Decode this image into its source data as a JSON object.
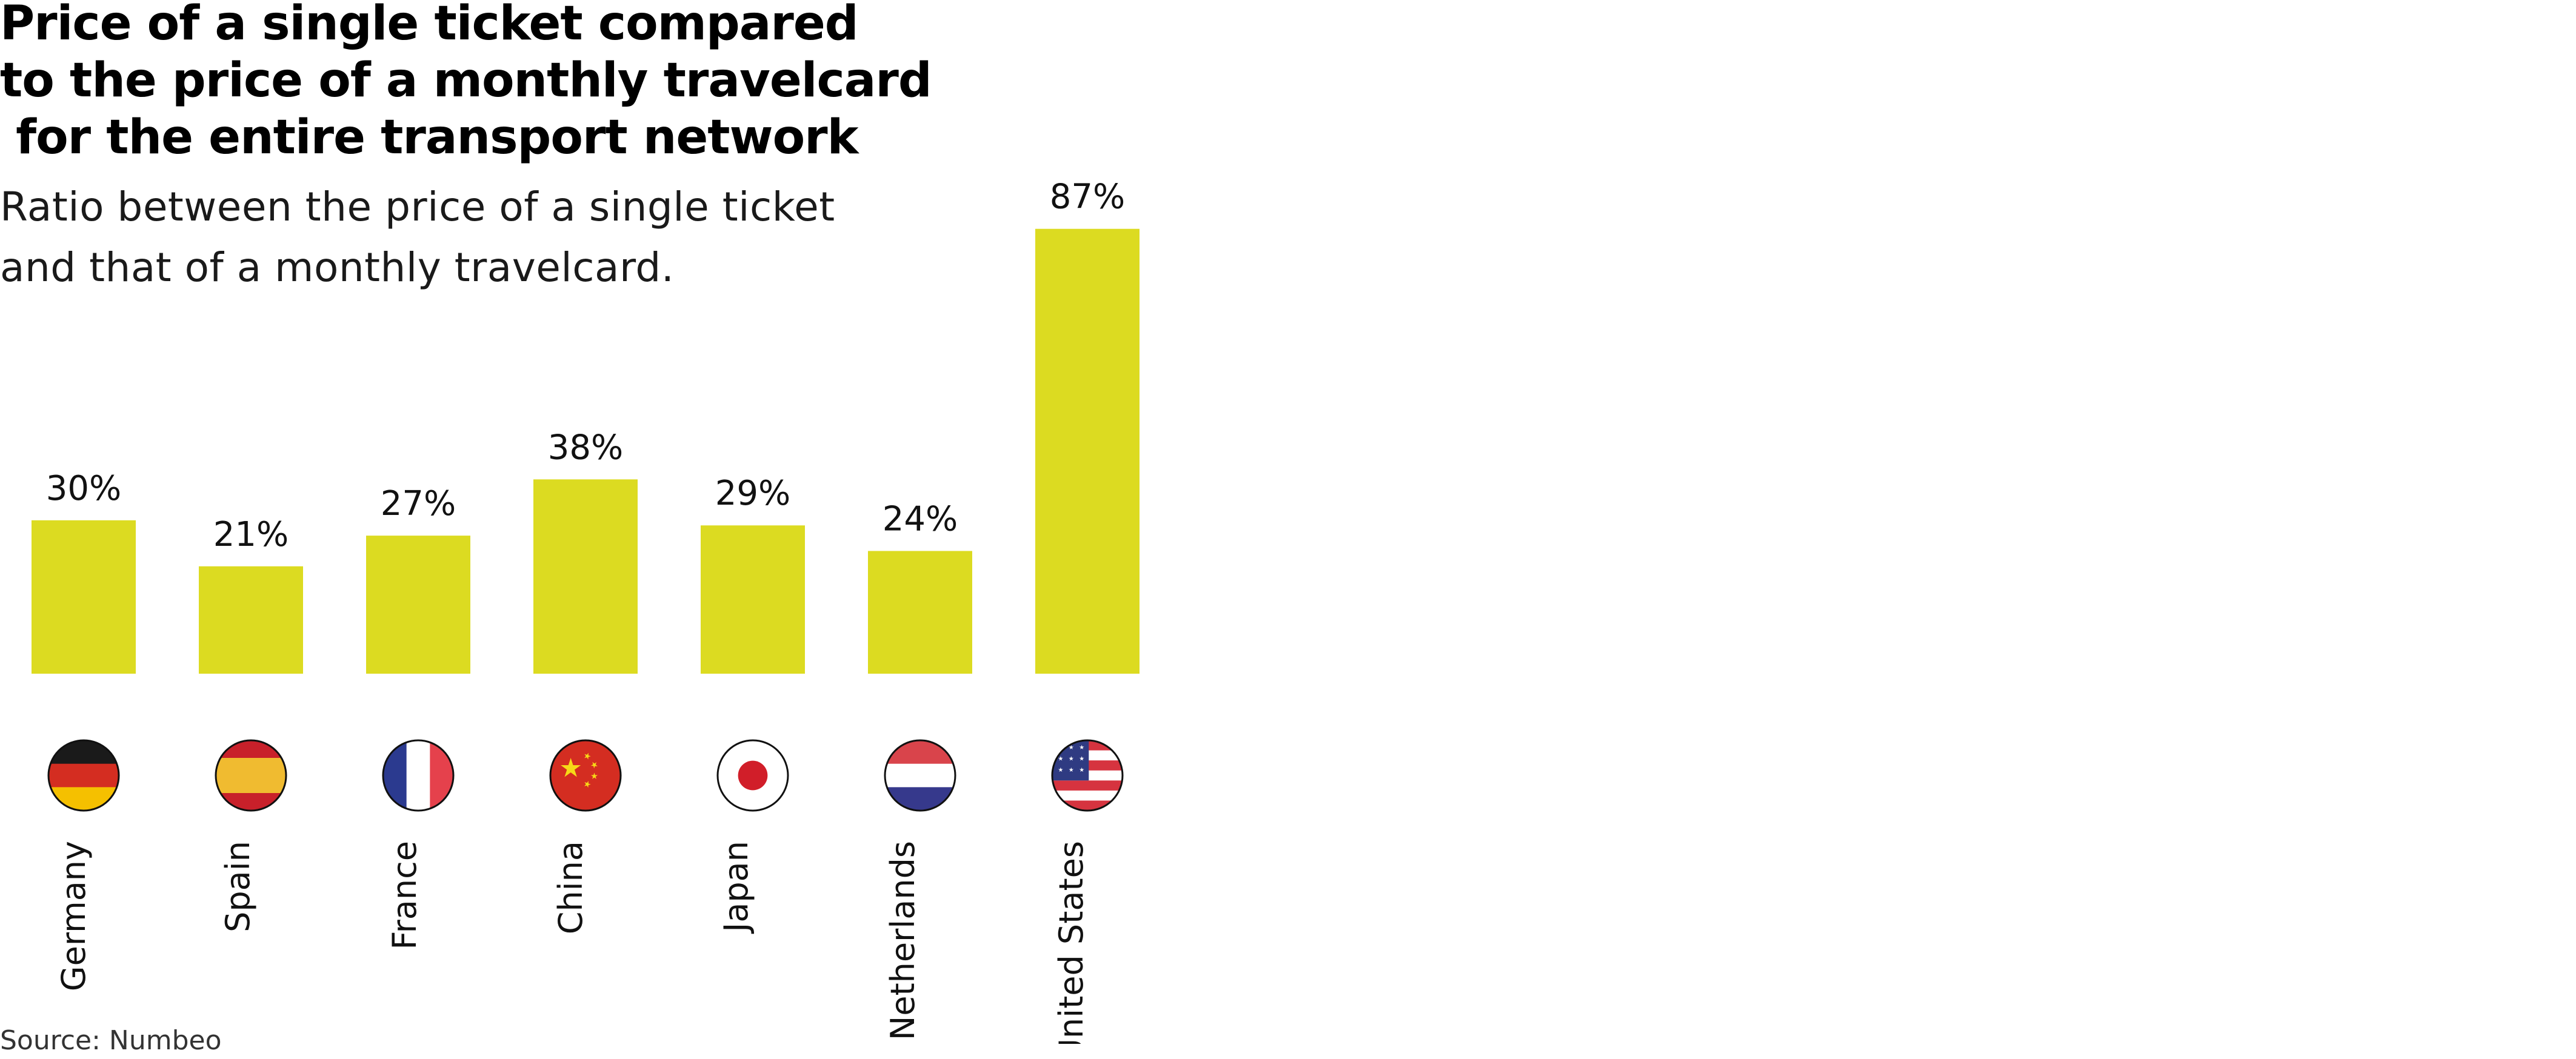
{
  "chart_data": {
    "type": "bar",
    "title": "Price of a single ticket compared\nto the price of a monthly travelcard\n for the entire transport network",
    "subtitle": "Ratio between the price of a single ticket\nand that of a monthly travelcard.",
    "source": "Source: Numbeo",
    "categories": [
      "Germany",
      "Spain",
      "France",
      "China",
      "Japan",
      "Netherlands",
      "United States"
    ],
    "values": [
      30,
      21,
      27,
      38,
      29,
      24,
      87
    ],
    "value_labels": [
      "30%",
      "21%",
      "27%",
      "38%",
      "29%",
      "24%",
      "87%"
    ],
    "flags": [
      "germany-flag-icon",
      "spain-flag-icon",
      "france-flag-icon",
      "china-flag-icon",
      "japan-flag-icon",
      "netherlands-flag-icon",
      "united-states-flag-icon"
    ],
    "ylim": [
      0,
      87
    ],
    "grid": false,
    "legend": "none",
    "xlabel": "",
    "ylabel": "",
    "colors": {
      "bar": "#dcdb21",
      "text": "#111111",
      "germany": [
        "#1a1a1a",
        "#d42d21",
        "#f5c000"
      ],
      "spain": [
        "#c8202a",
        "#f0bb30",
        "#c8202a"
      ],
      "france": [
        "#2b3a8f",
        "#ffffff",
        "#e5414c"
      ],
      "china": "#d42d21",
      "china_star": "#f7d917",
      "japan_disc": "#d11e29",
      "netherlands": [
        "#d9444b",
        "#ffffff",
        "#36398c"
      ],
      "us_stripe": "#d6333f",
      "us_canton": "#2f3b82"
    }
  }
}
